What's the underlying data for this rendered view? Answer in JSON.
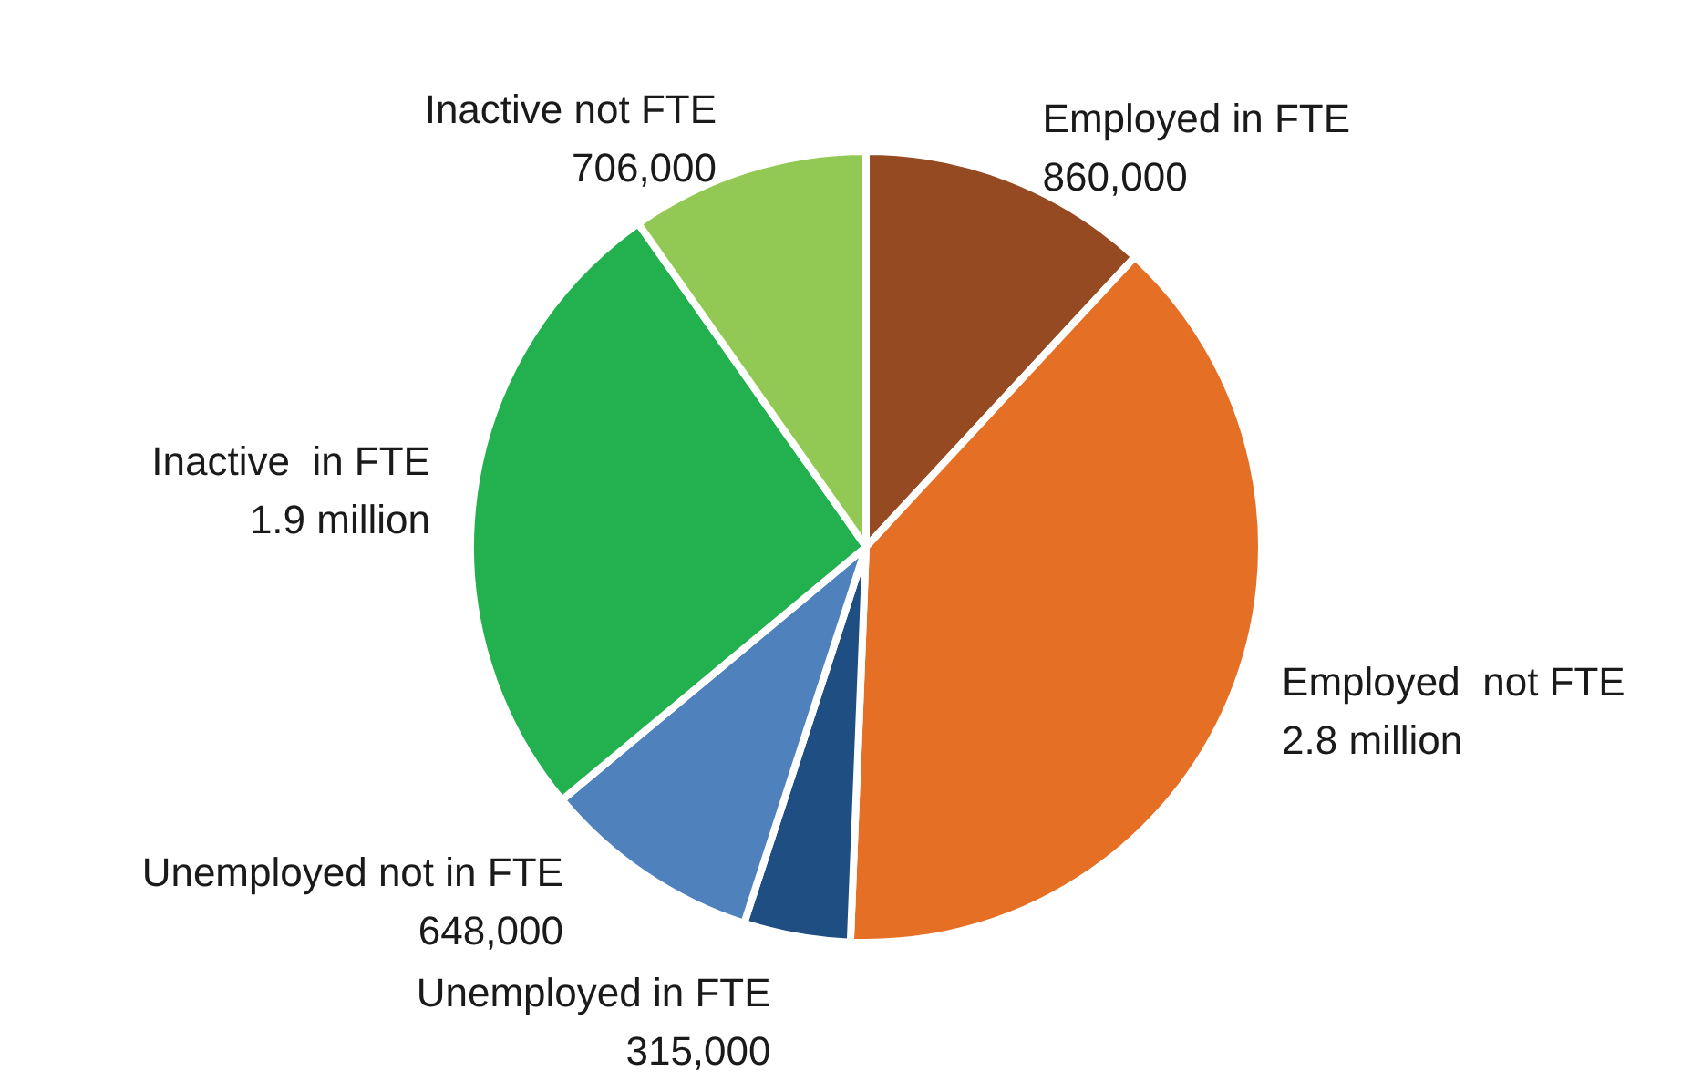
{
  "chart_data": {
    "type": "pie",
    "categories": [
      "Employed in FTE",
      "Employed  not FTE",
      "Unemployed in FTE",
      "Unemployed not in FTE",
      "Inactive  in FTE",
      "Inactive not FTE"
    ],
    "values": [
      860000,
      2800000,
      315000,
      648000,
      1900000,
      706000
    ],
    "value_labels": [
      "860,000",
      "2.8 million",
      "315,000",
      "648,000",
      "1.9 million",
      "706,000"
    ],
    "colors": [
      "#954a22",
      "#e56f25",
      "#1f4e82",
      "#4f81bd",
      "#23b04f",
      "#92c955"
    ],
    "legend": false
  }
}
